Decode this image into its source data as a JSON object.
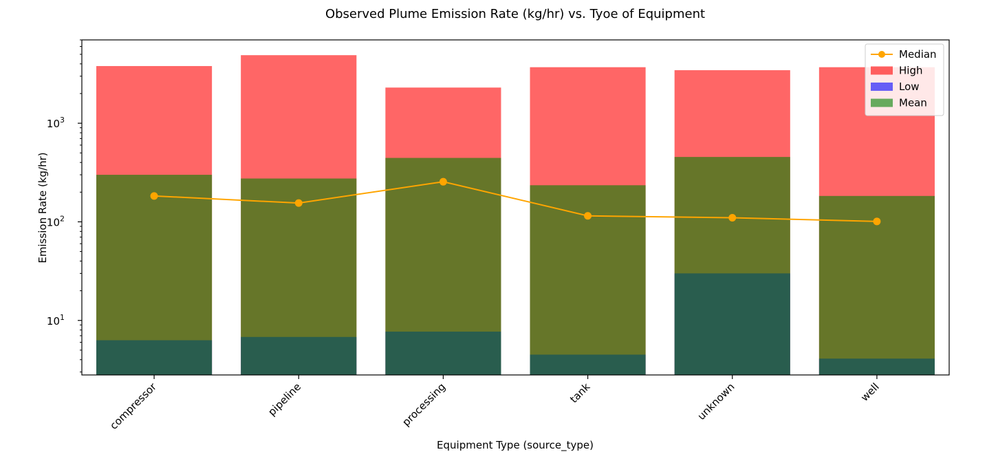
{
  "chart_data": {
    "type": "bar",
    "title": "Observed Plume Emission Rate (kg/hr) vs. Tyoe of Equipment",
    "xlabel": "Equipment Type (source_type)",
    "ylabel": "Emission Rate (kg/hr)",
    "yscale": "log",
    "ylim": [
      2.8,
      7000
    ],
    "ytick_values": [
      10,
      100,
      1000
    ],
    "ytick_labels": [
      {
        "base": "10",
        "exp": "1"
      },
      {
        "base": "10",
        "exp": "2"
      },
      {
        "base": "10",
        "exp": "3"
      }
    ],
    "categories": [
      "compressor",
      "pipeline",
      "processing",
      "tank",
      "unknown",
      "well"
    ],
    "series": [
      {
        "name": "High",
        "kind": "bar",
        "color": "#ff0000",
        "opacity": 0.6,
        "values": [
          3800,
          4900,
          2300,
          3700,
          3450,
          3700
        ]
      },
      {
        "name": "Low",
        "kind": "bar",
        "color": "#0000ff",
        "opacity": 0.6,
        "values": [
          6.3,
          6.8,
          7.7,
          4.5,
          30,
          4.1
        ]
      },
      {
        "name": "Mean",
        "kind": "bar",
        "color": "#008000",
        "opacity": 0.6,
        "values": [
          300,
          275,
          445,
          235,
          455,
          183
        ]
      },
      {
        "name": "Median",
        "kind": "line",
        "color": "#ffa500",
        "values": [
          183,
          155,
          255,
          115,
          110,
          101
        ]
      }
    ],
    "legend": {
      "placement": "top-right",
      "entries": [
        "Median",
        "High",
        "Low",
        "Mean"
      ]
    },
    "grid": false
  }
}
